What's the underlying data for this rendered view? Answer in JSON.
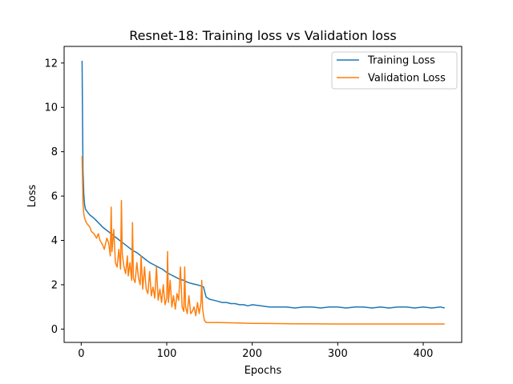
{
  "chart_data": {
    "type": "line",
    "title": "Resnet-18: Training loss vs Validation loss",
    "xlabel": "Epochs",
    "ylabel": "Loss",
    "xlim": [
      -20,
      445
    ],
    "ylim": [
      -0.6,
      12.75
    ],
    "xticks": [
      0,
      100,
      200,
      300,
      400
    ],
    "yticks": [
      0,
      2,
      4,
      6,
      8,
      10,
      12
    ],
    "grid": false,
    "legend_position": "top-right",
    "series": [
      {
        "name": "Training Loss",
        "color": "#1f77b4",
        "x": [
          1,
          2,
          3,
          4,
          5,
          8,
          10,
          15,
          20,
          25,
          30,
          35,
          40,
          45,
          50,
          55,
          60,
          65,
          70,
          75,
          80,
          85,
          90,
          95,
          100,
          105,
          110,
          115,
          120,
          125,
          130,
          135,
          140,
          143,
          146,
          150,
          155,
          160,
          165,
          170,
          175,
          180,
          185,
          190,
          195,
          200,
          210,
          220,
          230,
          240,
          250,
          260,
          270,
          280,
          290,
          300,
          310,
          320,
          330,
          340,
          350,
          360,
          370,
          380,
          390,
          400,
          410,
          420,
          425
        ],
        "values": [
          12.1,
          7.2,
          6.1,
          5.6,
          5.4,
          5.25,
          5.15,
          5.0,
          4.8,
          4.6,
          4.45,
          4.3,
          4.15,
          4.0,
          3.85,
          3.7,
          3.55,
          3.45,
          3.3,
          3.15,
          3.0,
          2.9,
          2.8,
          2.7,
          2.55,
          2.45,
          2.35,
          2.25,
          2.2,
          2.1,
          2.05,
          2.0,
          1.95,
          1.9,
          1.45,
          1.35,
          1.3,
          1.25,
          1.2,
          1.2,
          1.15,
          1.15,
          1.1,
          1.1,
          1.05,
          1.1,
          1.05,
          1.0,
          1.0,
          1.0,
          0.95,
          1.0,
          1.0,
          0.95,
          1.0,
          1.0,
          0.95,
          1.0,
          1.0,
          0.95,
          1.0,
          0.95,
          1.0,
          1.0,
          0.95,
          1.0,
          0.95,
          1.0,
          0.95
        ]
      },
      {
        "name": "Validation Loss",
        "color": "#ff7f0e",
        "x": [
          1,
          2,
          3,
          4,
          6,
          8,
          10,
          12,
          15,
          18,
          20,
          22,
          25,
          27,
          30,
          32,
          34,
          35,
          36,
          38,
          40,
          42,
          44,
          46,
          47,
          48,
          50,
          52,
          54,
          55,
          57,
          59,
          60,
          61,
          63,
          65,
          67,
          69,
          70,
          72,
          74,
          76,
          78,
          80,
          82,
          84,
          86,
          88,
          90,
          92,
          94,
          96,
          98,
          100,
          101,
          102,
          104,
          106,
          108,
          110,
          112,
          114,
          116,
          118,
          120,
          121,
          122,
          124,
          126,
          128,
          130,
          132,
          134,
          136,
          138,
          140,
          141,
          142,
          144,
          146,
          148,
          150,
          160,
          180,
          200,
          220,
          250,
          300,
          350,
          400,
          425
        ],
        "values": [
          7.8,
          5.7,
          5.2,
          5.0,
          4.8,
          4.7,
          4.6,
          4.4,
          4.3,
          4.1,
          4.3,
          4.0,
          3.8,
          3.6,
          4.1,
          3.9,
          3.3,
          5.5,
          3.5,
          4.5,
          3.0,
          2.8,
          3.6,
          2.7,
          5.8,
          3.4,
          2.8,
          2.5,
          3.3,
          2.4,
          3.0,
          2.2,
          4.8,
          2.3,
          2.1,
          3.0,
          2.3,
          2.0,
          3.3,
          1.8,
          2.8,
          1.8,
          1.6,
          2.6,
          1.5,
          1.9,
          1.4,
          2.8,
          1.3,
          1.8,
          1.2,
          2.0,
          1.1,
          1.4,
          3.5,
          1.2,
          2.2,
          1.0,
          1.5,
          0.9,
          1.6,
          1.3,
          2.8,
          1.0,
          0.8,
          2.8,
          1.0,
          0.7,
          1.5,
          0.7,
          0.8,
          1.0,
          0.6,
          1.2,
          0.7,
          1.2,
          2.2,
          0.9,
          0.4,
          0.3,
          0.3,
          0.3,
          0.3,
          0.28,
          0.26,
          0.25,
          0.24,
          0.23,
          0.23,
          0.23,
          0.23
        ]
      }
    ]
  }
}
